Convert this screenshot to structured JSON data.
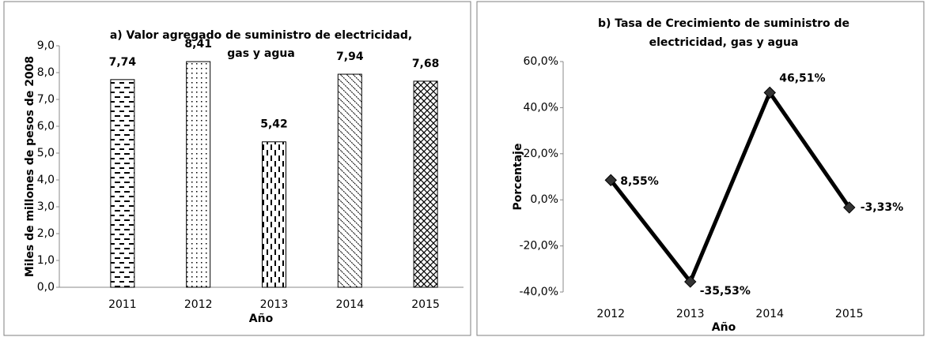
{
  "chart_data": [
    {
      "type": "bar",
      "title": [
        "a) Valor agregado de suministro de electricidad,",
        "gas y agua"
      ],
      "ylabel": "Miles de millones de pesos de 2008",
      "xlabel": "Año",
      "categories": [
        "2011",
        "2012",
        "2013",
        "2014",
        "2015"
      ],
      "values": [
        7.74,
        8.41,
        5.42,
        7.94,
        7.68
      ],
      "value_labels": [
        "7,74",
        "8,41",
        "5,42",
        "7,94",
        "7,68"
      ],
      "ylim": [
        0,
        9
      ],
      "yticks": [
        {
          "value": 0,
          "label": "0,0"
        },
        {
          "value": 1,
          "label": "1,0"
        },
        {
          "value": 2,
          "label": "2,0"
        },
        {
          "value": 3,
          "label": "3,0"
        },
        {
          "value": 4,
          "label": "4,0"
        },
        {
          "value": 5,
          "label": "5,0"
        },
        {
          "value": 6,
          "label": "6,0"
        },
        {
          "value": 7,
          "label": "7,0"
        },
        {
          "value": 8,
          "label": "8,0"
        },
        {
          "value": 9,
          "label": "9,0"
        }
      ],
      "grid": false
    },
    {
      "type": "line",
      "title": [
        "b) Tasa de Crecimiento de suministro de",
        "electricidad, gas y agua"
      ],
      "ylabel": "Porcentaje",
      "xlabel": "Año",
      "categories": [
        "2012",
        "2013",
        "2014",
        "2015"
      ],
      "values": [
        8.55,
        -35.53,
        46.51,
        -3.33
      ],
      "value_labels": [
        "8,55%",
        "-35,53%",
        "46,51%",
        "-3,33%"
      ],
      "color": "#000000",
      "ylim": [
        -40,
        60
      ],
      "yticks": [
        {
          "value": -40,
          "label": "-40,0%"
        },
        {
          "value": -20,
          "label": "-20,0%"
        },
        {
          "value": 0,
          "label": "0,0%"
        },
        {
          "value": 20,
          "label": "20,0%"
        },
        {
          "value": 40,
          "label": "40,0%"
        },
        {
          "value": 60,
          "label": "60,0%"
        }
      ],
      "grid": false
    }
  ]
}
